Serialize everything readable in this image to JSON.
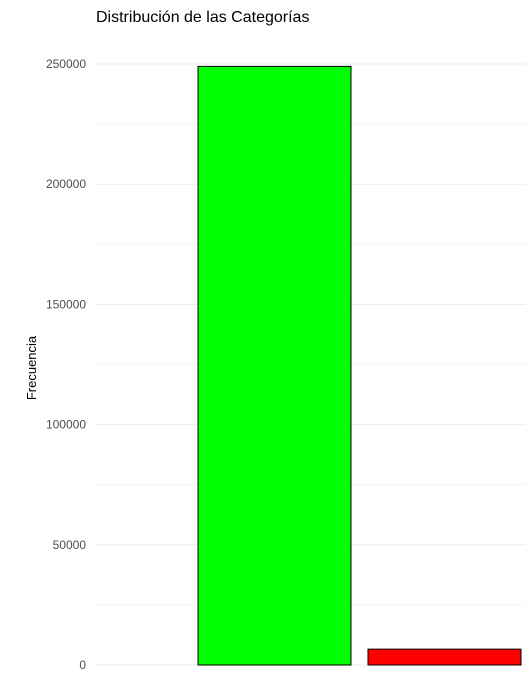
{
  "chart_data": {
    "type": "bar",
    "title": "Distribución de las Categorías",
    "xlabel": "",
    "ylabel": "Frecuencia",
    "categories": [
      "",
      ""
    ],
    "values": [
      249000,
      6600
    ],
    "colors": [
      "#00ff00",
      "#ff0000"
    ],
    "ylim": [
      0,
      250000
    ],
    "yticks": [
      0,
      50000,
      100000,
      150000,
      200000,
      250000
    ],
    "ytick_labels": [
      "0",
      "50000",
      "100000",
      "150000",
      "200000",
      "250000"
    ],
    "grid": true,
    "legend": "none"
  }
}
